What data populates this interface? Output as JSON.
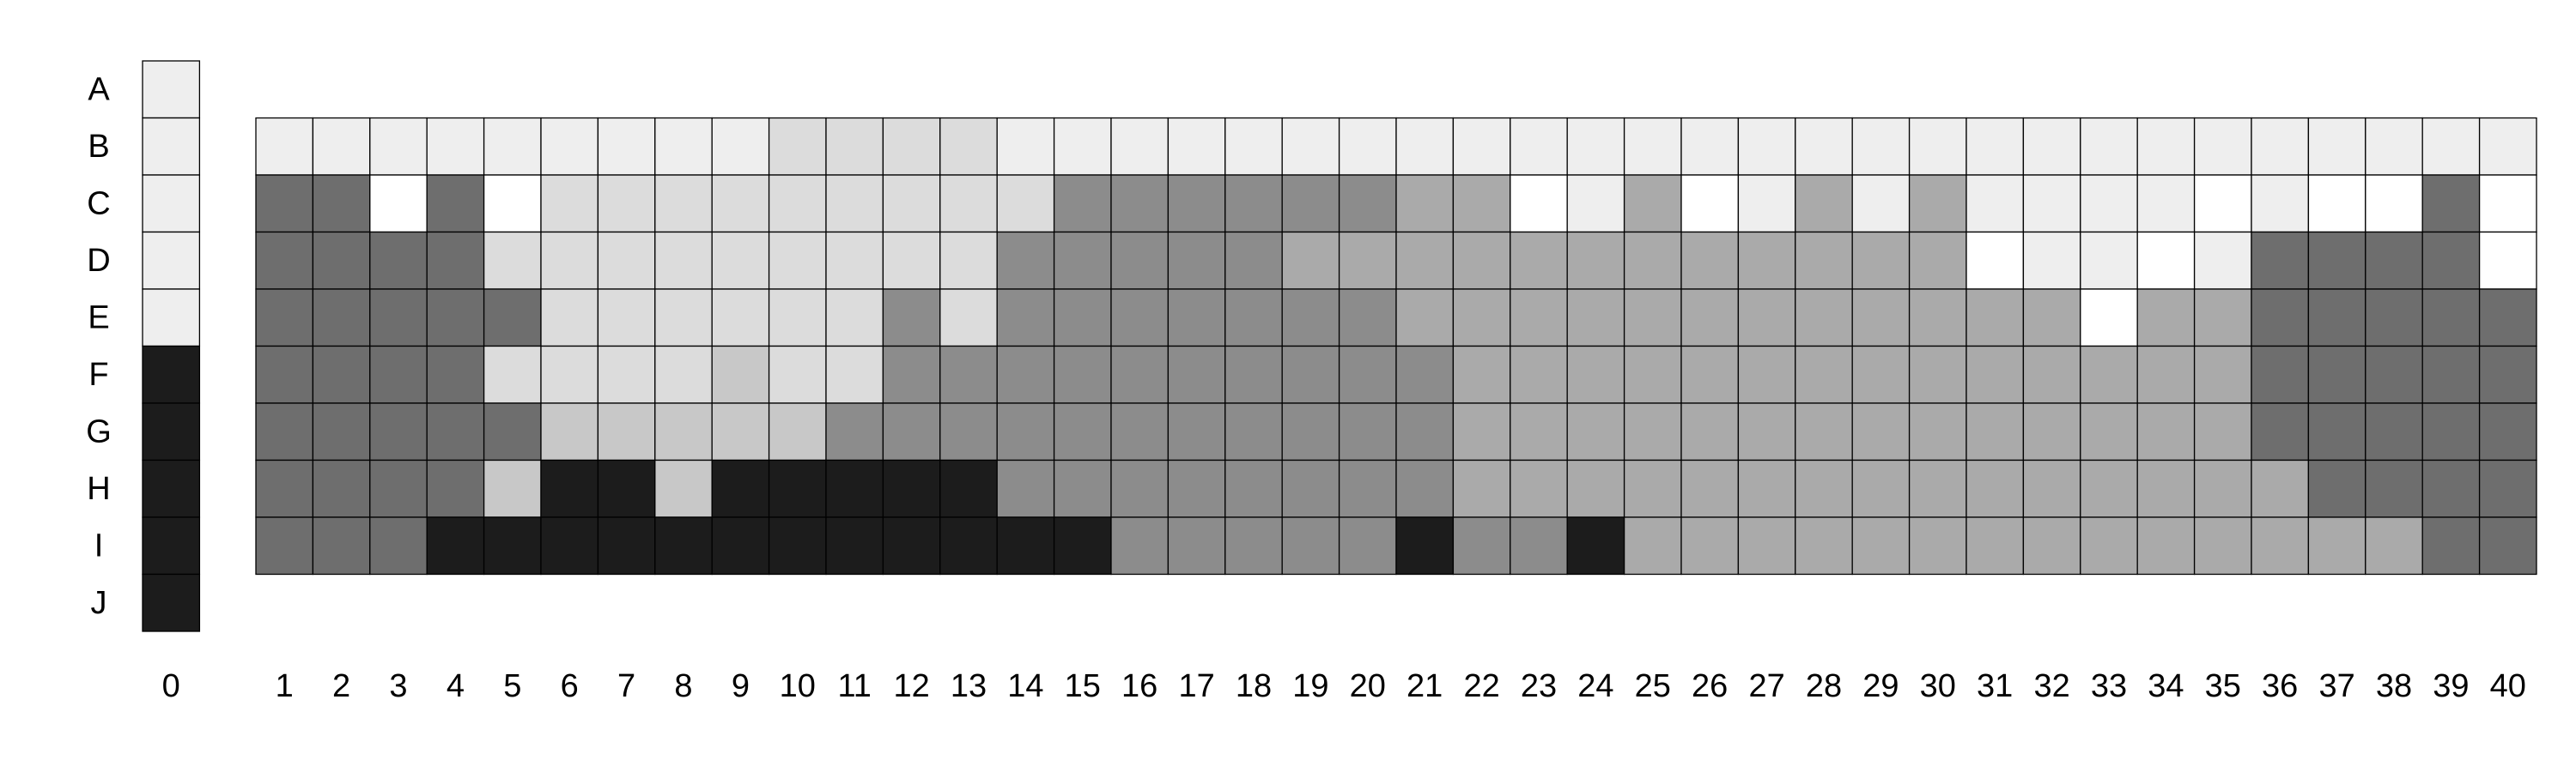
{
  "chart_data": {
    "type": "heatmap",
    "rows": [
      "A",
      "B",
      "C",
      "D",
      "E",
      "F",
      "G",
      "H",
      "I",
      "J"
    ],
    "columns": [
      "0",
      "1",
      "2",
      "3",
      "4",
      "5",
      "6",
      "7",
      "8",
      "9",
      "10",
      "11",
      "12",
      "13",
      "14",
      "15",
      "16",
      "17",
      "18",
      "19",
      "20",
      "21",
      "22",
      "23",
      "24",
      "25",
      "26",
      "27",
      "28",
      "29",
      "30",
      "31",
      "32",
      "33",
      "34",
      "35",
      "36",
      "37",
      "38",
      "39",
      "40"
    ],
    "palette": {
      "0": "#ffffff",
      "1": "#eeeeee",
      "2": "#dcdcdc",
      "3": "#c8c8c8",
      "4": "#aaaaaa",
      "5": "#8c8c8c",
      "6": "#6e6e6e",
      "7": "#1c1c1c"
    },
    "reference_column": {
      "label": "0",
      "values": [
        1,
        1,
        1,
        1,
        1,
        7,
        7,
        7,
        7,
        7
      ]
    },
    "matrix_rows": [
      "B",
      "C",
      "D",
      "E",
      "F",
      "G",
      "H",
      "I"
    ],
    "values": [
      [
        1,
        1,
        1,
        1,
        1,
        1,
        1,
        1,
        1,
        2,
        2,
        2,
        2,
        1,
        1,
        1,
        1,
        1,
        1,
        1,
        1,
        1,
        1,
        1,
        1,
        1,
        1,
        1,
        1,
        1,
        1,
        1,
        1,
        1,
        1,
        1,
        1,
        1,
        1,
        1
      ],
      [
        6,
        6,
        0,
        6,
        0,
        2,
        2,
        2,
        2,
        2,
        2,
        2,
        2,
        2,
        5,
        5,
        5,
        5,
        5,
        5,
        4,
        4,
        0,
        1,
        4,
        0,
        1,
        4,
        1,
        4,
        1,
        1,
        1,
        1,
        0,
        1,
        0,
        0,
        6,
        0
      ],
      [
        6,
        6,
        6,
        6,
        2,
        2,
        2,
        2,
        2,
        2,
        2,
        2,
        2,
        5,
        5,
        5,
        5,
        5,
        4,
        4,
        4,
        4,
        4,
        4,
        4,
        4,
        4,
        4,
        4,
        4,
        0,
        1,
        1,
        0,
        1,
        6,
        6,
        6,
        6,
        0
      ],
      [
        6,
        6,
        6,
        6,
        6,
        2,
        2,
        2,
        2,
        2,
        2,
        5,
        2,
        5,
        5,
        5,
        5,
        5,
        5,
        5,
        4,
        4,
        4,
        4,
        4,
        4,
        4,
        4,
        4,
        4,
        4,
        4,
        0,
        4,
        4,
        6,
        6,
        6,
        6,
        6
      ],
      [
        6,
        6,
        6,
        6,
        2,
        2,
        2,
        2,
        3,
        2,
        2,
        5,
        5,
        5,
        5,
        5,
        5,
        5,
        5,
        5,
        5,
        4,
        4,
        4,
        4,
        4,
        4,
        4,
        4,
        4,
        4,
        4,
        4,
        4,
        4,
        6,
        6,
        6,
        6,
        6
      ],
      [
        6,
        6,
        6,
        6,
        6,
        3,
        3,
        3,
        3,
        3,
        5,
        5,
        5,
        5,
        5,
        5,
        5,
        5,
        5,
        5,
        5,
        4,
        4,
        4,
        4,
        4,
        4,
        4,
        4,
        4,
        4,
        4,
        4,
        4,
        4,
        6,
        6,
        6,
        6,
        6
      ],
      [
        6,
        6,
        6,
        6,
        3,
        7,
        7,
        3,
        7,
        7,
        7,
        7,
        7,
        5,
        5,
        5,
        5,
        5,
        5,
        5,
        5,
        4,
        4,
        4,
        4,
        4,
        4,
        4,
        4,
        4,
        4,
        4,
        4,
        4,
        4,
        4,
        6,
        6,
        6,
        6
      ],
      [
        6,
        6,
        6,
        7,
        7,
        7,
        7,
        7,
        7,
        7,
        7,
        7,
        7,
        7,
        7,
        5,
        5,
        5,
        5,
        5,
        7,
        5,
        5,
        7,
        4,
        4,
        4,
        4,
        4,
        4,
        4,
        4,
        4,
        4,
        4,
        4,
        4,
        4,
        6,
        6
      ]
    ]
  }
}
